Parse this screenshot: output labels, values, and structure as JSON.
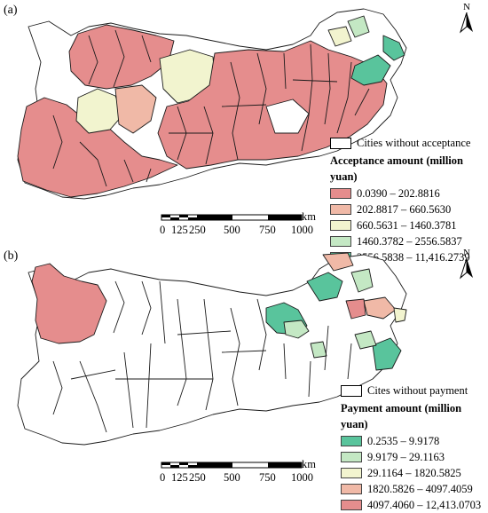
{
  "panels": [
    {
      "tag": "(a)",
      "none_label": "Cities without acceptance",
      "legend_title": "Acceptance amount (million yuan)",
      "classes": [
        {
          "label": "0.0390 – 202.8816",
          "color": "#e58d8d"
        },
        {
          "label": "202.8817 – 660.5630",
          "color": "#f0b9a7"
        },
        {
          "label": "660.5631 – 1460.3781",
          "color": "#f2f4cf"
        },
        {
          "label": "1460.3782 – 2556.5837",
          "color": "#c4e8c4"
        },
        {
          "label": "2556.5838 – 11,416.2739",
          "color": "#59c49c"
        }
      ],
      "scale_unit": "km",
      "scale_ticks": [
        "0",
        "125",
        "250",
        "500",
        "750",
        "1000"
      ],
      "north_label": "N"
    },
    {
      "tag": "(b)",
      "none_label": "Cites without payment",
      "legend_title": "Payment amount (million yuan)",
      "classes": [
        {
          "label": "0.2535 – 9.9178",
          "color": "#59c49c"
        },
        {
          "label": "9.9179 – 29.1163",
          "color": "#c4e8c4"
        },
        {
          "label": "29.1164 – 1820.5825",
          "color": "#f2f4cf"
        },
        {
          "label": "1820.5826 – 4097.4059",
          "color": "#f0b9a7"
        },
        {
          "label": "4097.4060 – 12,413.0703",
          "color": "#e58d8d"
        }
      ],
      "scale_unit": "km",
      "scale_ticks": [
        "0",
        "125",
        "250",
        "500",
        "750",
        "1000"
      ],
      "north_label": "N"
    }
  ]
}
